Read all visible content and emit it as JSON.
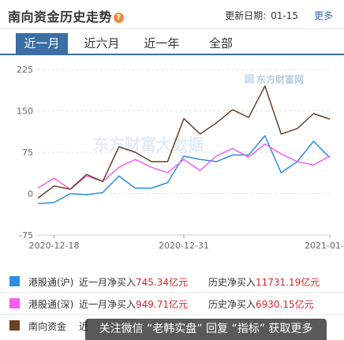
{
  "header": {
    "title": "南向资金历史走势",
    "help_glyph": "?",
    "update_label": "更新日期:",
    "update_date": "01-15",
    "more_label": "更多"
  },
  "tabs": [
    {
      "label": "近一月",
      "active": true
    },
    {
      "label": "近六月",
      "active": false
    },
    {
      "label": "近一年",
      "active": false
    },
    {
      "label": "全部",
      "active": false
    }
  ],
  "watermark": {
    "center_text": "东方财富大数据",
    "logo_text": "东方财富网"
  },
  "chart_data": {
    "type": "line",
    "title": "",
    "xlabel": "",
    "ylabel": "",
    "x_tick_labels": [
      "2020-12-18",
      "2020-12-31",
      "2021-01-15"
    ],
    "y_ticks": [
      225,
      150,
      75,
      0,
      -75
    ],
    "ylim": [
      -75,
      225
    ],
    "grid": "horizontal-dashed",
    "series": [
      {
        "name": "港股通(沪)",
        "color": "#2a8fe0",
        "values": [
          -18,
          -16,
          0,
          -2,
          2,
          32,
          10,
          10,
          20,
          68,
          62,
          58,
          70,
          70,
          105,
          38,
          58,
          95,
          65
        ]
      },
      {
        "name": "港股通(深)",
        "color": "#f55ff0",
        "values": [
          10,
          28,
          8,
          32,
          22,
          48,
          62,
          48,
          38,
          62,
          42,
          68,
          82,
          66,
          90,
          72,
          58,
          52,
          68
        ]
      },
      {
        "name": "南向资金",
        "color": "#6b4226",
        "values": [
          -8,
          14,
          8,
          35,
          22,
          85,
          75,
          58,
          58,
          136,
          108,
          128,
          152,
          138,
          195,
          108,
          118,
          145,
          135
        ]
      }
    ]
  },
  "legend": [
    {
      "name": "港股通(沪)",
      "color": "#2a8fe0",
      "recent_label": "近一月净买入",
      "recent_value": "745.34亿元",
      "hist_label": "历史净买入",
      "hist_value": "11731.19亿元"
    },
    {
      "name": "港股通(深)",
      "color": "#f55ff0",
      "recent_label": "近一月净买入",
      "recent_value": "949.71亿元",
      "hist_label": "历史净买入",
      "hist_value": "6930.15亿元"
    },
    {
      "name": "南向资金",
      "color": "#6b4226",
      "recent_label": "近",
      "recent_value": "",
      "hist_label": "",
      "hist_value": ""
    }
  ],
  "overlay_text": "关注微信 “老韩实盘” 回复 “指标” 获取更多"
}
